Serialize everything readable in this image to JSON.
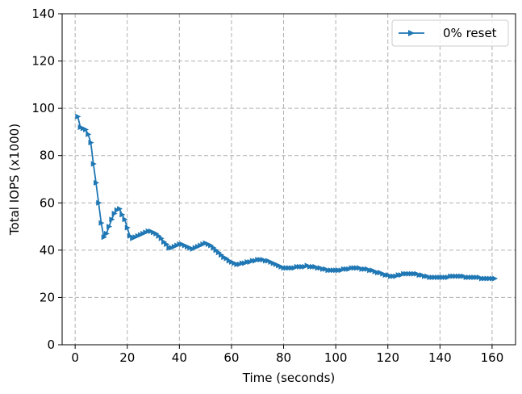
{
  "chart_data": {
    "type": "line",
    "xlabel": "Time (seconds)",
    "ylabel": "Total IOPS (x1000)",
    "xlim": [
      -5,
      169
    ],
    "ylim": [
      0,
      140
    ],
    "xticks": [
      0,
      20,
      40,
      60,
      80,
      100,
      120,
      140,
      160
    ],
    "yticks": [
      0,
      20,
      40,
      60,
      80,
      100,
      120,
      140
    ],
    "xtick_labels": [
      "0",
      "20",
      "40",
      "60",
      "80",
      "100",
      "120",
      "140",
      "160"
    ],
    "ytick_labels": [
      "0",
      "20",
      "40",
      "60",
      "80",
      "100",
      "120",
      "140"
    ],
    "grid": true,
    "legend_position": "top-right",
    "series": [
      {
        "name": "0% reset",
        "color": "#1f77b4",
        "marker": "triangle-right",
        "points": [
          [
            1,
            96.5
          ],
          [
            2,
            92
          ],
          [
            3,
            91.5
          ],
          [
            4,
            91
          ],
          [
            5,
            89
          ],
          [
            6,
            85.5
          ],
          [
            7,
            76.5
          ],
          [
            8,
            68.5
          ],
          [
            9,
            60
          ],
          [
            10,
            51.5
          ],
          [
            11,
            45.5
          ],
          [
            12,
            47
          ],
          [
            13,
            50
          ],
          [
            14,
            53
          ],
          [
            15,
            55.5
          ],
          [
            16,
            57
          ],
          [
            17,
            57.5
          ],
          [
            18,
            55
          ],
          [
            19,
            53
          ],
          [
            20,
            49.5
          ],
          [
            21,
            46
          ],
          [
            22,
            45
          ],
          [
            23,
            45.5
          ],
          [
            24,
            46
          ],
          [
            25,
            46.5
          ],
          [
            26,
            47
          ],
          [
            27,
            47.5
          ],
          [
            28,
            48
          ],
          [
            29,
            48
          ],
          [
            30,
            47.5
          ],
          [
            31,
            47
          ],
          [
            32,
            46
          ],
          [
            33,
            45
          ],
          [
            34,
            43.5
          ],
          [
            35,
            42.5
          ],
          [
            36,
            41
          ],
          [
            37,
            41
          ],
          [
            38,
            41.5
          ],
          [
            39,
            42
          ],
          [
            40,
            42.5
          ],
          [
            41,
            42.5
          ],
          [
            42,
            42
          ],
          [
            43,
            41.5
          ],
          [
            44,
            41
          ],
          [
            45,
            40.5
          ],
          [
            46,
            41
          ],
          [
            47,
            41.5
          ],
          [
            48,
            42
          ],
          [
            49,
            42.5
          ],
          [
            50,
            43
          ],
          [
            51,
            42.5
          ],
          [
            52,
            42
          ],
          [
            53,
            41
          ],
          [
            54,
            40
          ],
          [
            55,
            39
          ],
          [
            56,
            38
          ],
          [
            57,
            37
          ],
          [
            58,
            36.5
          ],
          [
            59,
            35.5
          ],
          [
            60,
            35
          ],
          [
            61,
            34.5
          ],
          [
            62,
            34
          ],
          [
            63,
            34
          ],
          [
            64,
            34.5
          ],
          [
            65,
            34.5
          ],
          [
            66,
            35
          ],
          [
            67,
            35
          ],
          [
            68,
            35.5
          ],
          [
            69,
            35.5
          ],
          [
            70,
            36
          ],
          [
            71,
            36
          ],
          [
            72,
            36
          ],
          [
            73,
            35.5
          ],
          [
            74,
            35.5
          ],
          [
            75,
            35
          ],
          [
            76,
            34.5
          ],
          [
            77,
            34
          ],
          [
            78,
            33.5
          ],
          [
            79,
            33
          ],
          [
            80,
            32.5
          ],
          [
            81,
            32.5
          ],
          [
            82,
            32.5
          ],
          [
            83,
            32.5
          ],
          [
            84,
            32.5
          ],
          [
            85,
            33
          ],
          [
            86,
            33
          ],
          [
            87,
            33
          ],
          [
            88,
            33
          ],
          [
            89,
            33.5
          ],
          [
            90,
            33
          ],
          [
            91,
            33
          ],
          [
            92,
            33
          ],
          [
            93,
            32.5
          ],
          [
            94,
            32.5
          ],
          [
            95,
            32
          ],
          [
            96,
            32
          ],
          [
            97,
            31.5
          ],
          [
            98,
            31.5
          ],
          [
            99,
            31.5
          ],
          [
            100,
            31.5
          ],
          [
            101,
            31.5
          ],
          [
            102,
            31.5
          ],
          [
            103,
            32
          ],
          [
            104,
            32
          ],
          [
            105,
            32
          ],
          [
            106,
            32.5
          ],
          [
            107,
            32.5
          ],
          [
            108,
            32.5
          ],
          [
            109,
            32.5
          ],
          [
            110,
            32
          ],
          [
            111,
            32
          ],
          [
            112,
            32
          ],
          [
            113,
            31.5
          ],
          [
            114,
            31.5
          ],
          [
            115,
            31
          ],
          [
            116,
            30.5
          ],
          [
            117,
            30.5
          ],
          [
            118,
            30
          ],
          [
            119,
            29.5
          ],
          [
            120,
            29.5
          ],
          [
            121,
            29
          ],
          [
            122,
            29
          ],
          [
            123,
            29
          ],
          [
            124,
            29.5
          ],
          [
            125,
            29.5
          ],
          [
            126,
            30
          ],
          [
            127,
            30
          ],
          [
            128,
            30
          ],
          [
            129,
            30
          ],
          [
            130,
            30
          ],
          [
            131,
            30
          ],
          [
            132,
            29.5
          ],
          [
            133,
            29.5
          ],
          [
            134,
            29
          ],
          [
            135,
            29
          ],
          [
            136,
            28.5
          ],
          [
            137,
            28.5
          ],
          [
            138,
            28.5
          ],
          [
            139,
            28.5
          ],
          [
            140,
            28.5
          ],
          [
            141,
            28.5
          ],
          [
            142,
            28.5
          ],
          [
            143,
            28.5
          ],
          [
            144,
            29
          ],
          [
            145,
            29
          ],
          [
            146,
            29
          ],
          [
            147,
            29
          ],
          [
            148,
            29
          ],
          [
            149,
            29
          ],
          [
            150,
            28.5
          ],
          [
            151,
            28.5
          ],
          [
            152,
            28.5
          ],
          [
            153,
            28.5
          ],
          [
            154,
            28.5
          ],
          [
            155,
            28.5
          ],
          [
            156,
            28
          ],
          [
            157,
            28
          ],
          [
            158,
            28
          ],
          [
            159,
            28
          ],
          [
            160,
            28
          ],
          [
            161,
            28
          ]
        ]
      }
    ]
  }
}
